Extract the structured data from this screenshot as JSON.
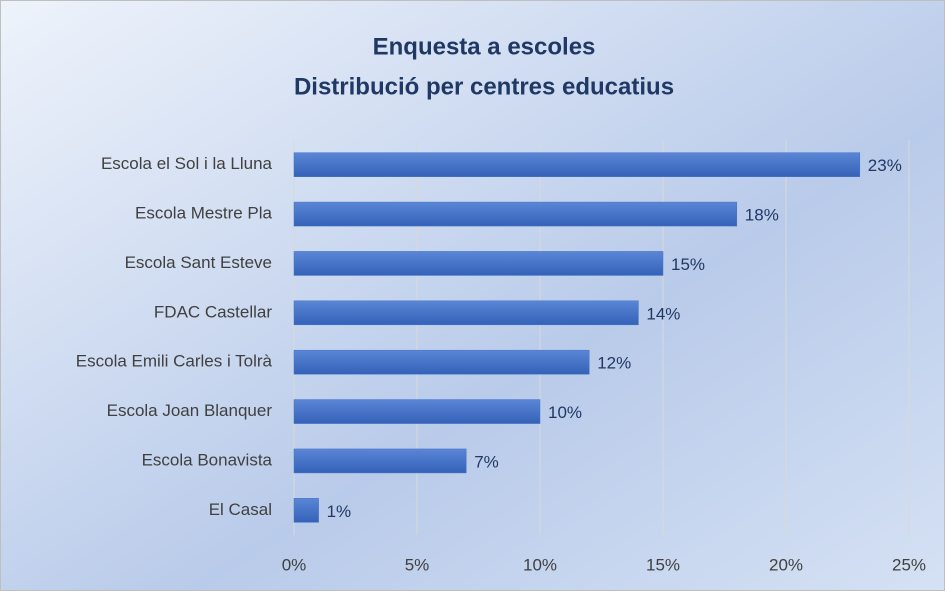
{
  "chart_data": {
    "type": "bar",
    "orientation": "horizontal",
    "title": "Enquesta a escoles",
    "subtitle": "Distribució per centres educatius",
    "categories": [
      "Escola el Sol i la Lluna",
      "Escola Mestre Pla",
      "Escola Sant Esteve",
      "FDAC Castellar",
      "Escola Emili Carles i Tolrà",
      "Escola Joan Blanquer",
      "Escola Bonavista",
      "El Casal"
    ],
    "values": [
      23,
      18,
      15,
      14,
      12,
      10,
      7,
      1
    ],
    "value_labels": [
      "23%",
      "18%",
      "15%",
      "14%",
      "12%",
      "10%",
      "7%",
      "1%"
    ],
    "color": "#4472c4",
    "xlim": [
      0,
      25
    ],
    "xticks": [
      {
        "value": 0,
        "label": "0%"
      },
      {
        "value": 5,
        "label": "5%"
      },
      {
        "value": 10,
        "label": "10%"
      },
      {
        "value": 15,
        "label": "15%"
      },
      {
        "value": 20,
        "label": "20%"
      },
      {
        "value": 25,
        "label": "25%"
      }
    ],
    "grid": true
  }
}
